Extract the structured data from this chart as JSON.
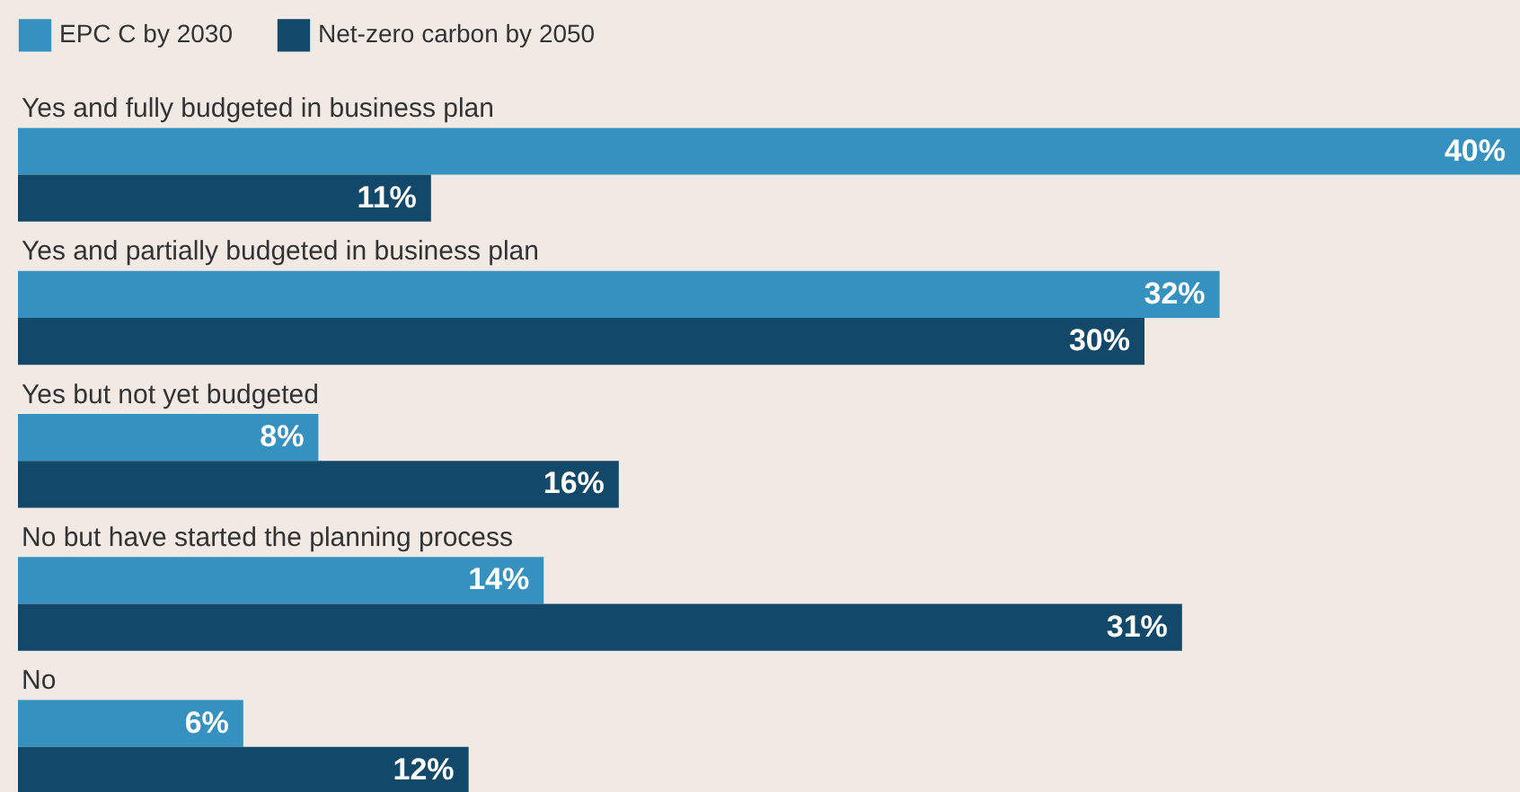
{
  "chart_data": {
    "type": "bar",
    "orientation": "horizontal",
    "categories": [
      "Yes and fully budgeted in business plan",
      "Yes and partially budgeted in business plan",
      "Yes but not yet budgeted",
      "No but have started the planning process",
      "No"
    ],
    "series": [
      {
        "name": "EPC C by 2030",
        "color": "#3592c0",
        "values": [
          40,
          32,
          8,
          14,
          6
        ],
        "value_labels": [
          "40%",
          "32%",
          "8%",
          "14%",
          "6%"
        ]
      },
      {
        "name": "Net-zero carbon by 2050",
        "color": "#12496b",
        "values": [
          11,
          30,
          16,
          31,
          12
        ],
        "value_labels": [
          "11%",
          "30%",
          "16%",
          "31%",
          "12%"
        ]
      }
    ],
    "legend": "top left"
  }
}
